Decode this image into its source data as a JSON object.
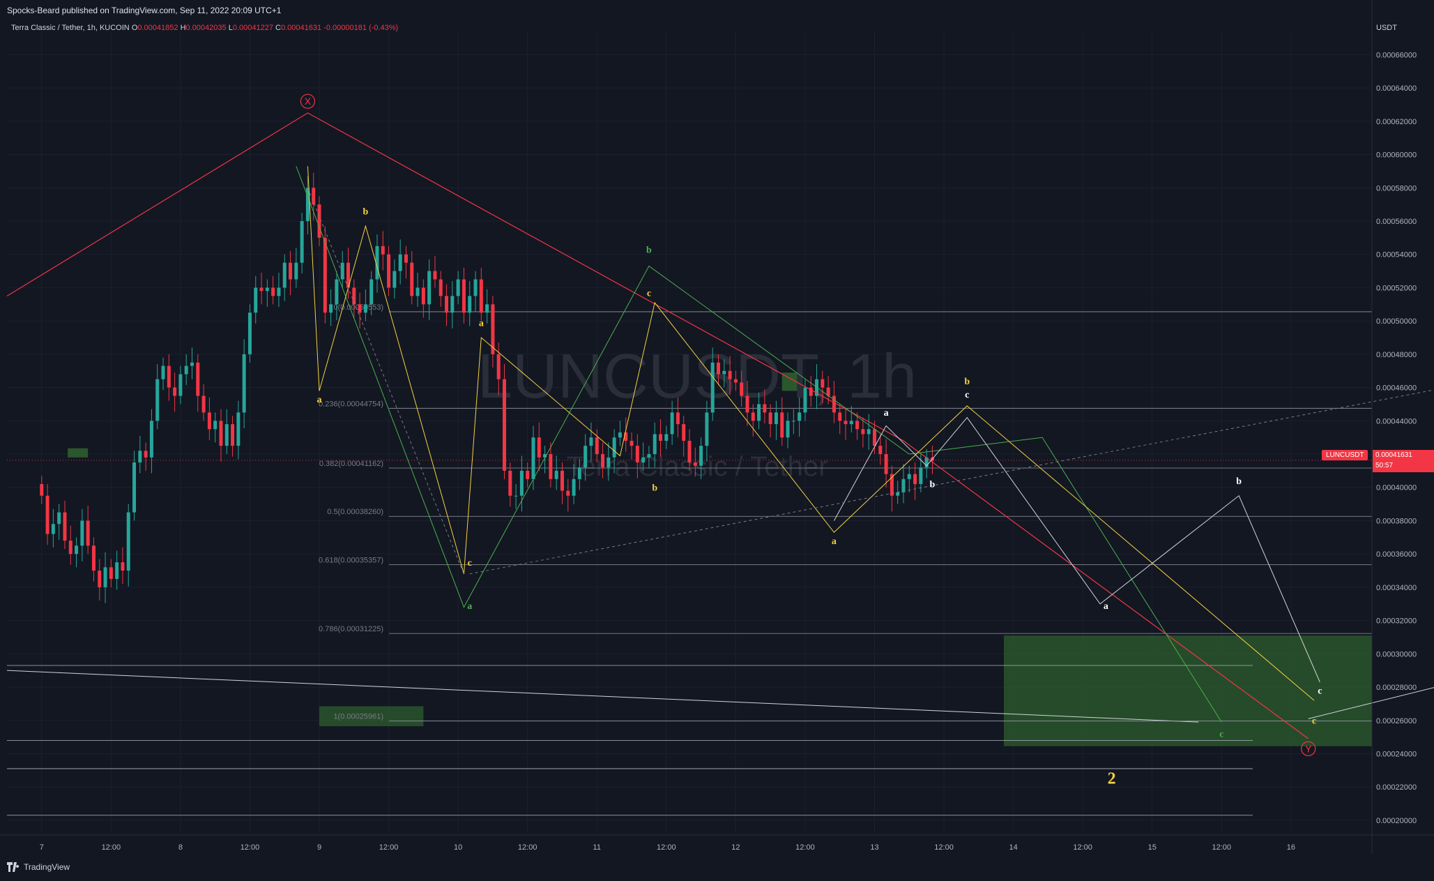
{
  "header": {
    "published": "Spocks-Beard published on TradingView.com, Sep 11, 2022 20:09 UTC+1"
  },
  "legend": {
    "symbol": "Terra Classic / Tether, 1h, KUCOIN",
    "o_label": "O",
    "o_value": "0.00041852",
    "h_label": "H",
    "h_value": "0.00042035",
    "l_label": "L",
    "l_value": "0.00041227",
    "c_label": "C",
    "c_value": "0.00041631",
    "change": "-0.00000181 (-0.43%)"
  },
  "axis_unit": "USDT",
  "watermark": {
    "ticker": "LUNCUSDT, 1h",
    "name": "Terra Classic / Tether"
  },
  "current_price": {
    "ticker": "LUNCUSDT",
    "price": "0.00041631",
    "countdown": "50:57"
  },
  "footer": {
    "brand": "TradingView"
  },
  "colors": {
    "background": "#131722",
    "up": "#26a69a",
    "down": "#f23645",
    "yellow": "#f5d142",
    "green_wave": "#4caf50",
    "zone": "#2e5e2e"
  },
  "chart_data": {
    "type": "candlestick",
    "title": "Terra Classic / Tether, 1h, KUCOIN",
    "ylabel": "USDT",
    "ylim": [
      0.000192,
      0.000674
    ],
    "y_ticks": [
      "0.00066000",
      "0.00064000",
      "0.00062000",
      "0.00060000",
      "0.00058000",
      "0.00056000",
      "0.00054000",
      "0.00052000",
      "0.00050000",
      "0.00048000",
      "0.00046000",
      "0.00044000",
      "0.00042000",
      "0.00040000",
      "0.00038000",
      "0.00036000",
      "0.00034000",
      "0.00032000",
      "0.00030000",
      "0.00028000",
      "0.00026000",
      "0.00024000",
      "0.00022000",
      "0.00020000"
    ],
    "x_ticks": [
      "7",
      "12:00",
      "8",
      "12:00",
      "9",
      "12:00",
      "10",
      "12:00",
      "11",
      "12:00",
      "12",
      "12:00",
      "13",
      "12:00",
      "14",
      "12:00",
      "15",
      "12:00",
      "16"
    ],
    "x_range_hours": [
      -6,
      230
    ],
    "fib_levels": [
      {
        "label": "0(0.00050553)",
        "value": 0.00050553
      },
      {
        "label": "0.236(0.00044754)",
        "value": 0.00044754
      },
      {
        "label": "0.382(0.00041162)",
        "value": 0.00041162
      },
      {
        "label": "0.5(0.00038260)",
        "value": 0.0003826
      },
      {
        "label": "0.618(0.00035357)",
        "value": 0.00035357
      },
      {
        "label": "0.786(0.00031225)",
        "value": 0.00031225
      },
      {
        "label": "1(0.00025961)",
        "value": 0.00025961
      }
    ],
    "candles_close": [
      0.000395,
      0.000372,
      0.000378,
      0.000385,
      0.000368,
      0.00036,
      0.000365,
      0.00038,
      0.000365,
      0.00035,
      0.00034,
      0.000352,
      0.000345,
      0.000355,
      0.00035,
      0.000385,
      0.000415,
      0.000422,
      0.000418,
      0.00044,
      0.000465,
      0.000473,
      0.00046,
      0.000455,
      0.000468,
      0.000473,
      0.000475,
      0.000455,
      0.000445,
      0.000435,
      0.00044,
      0.000425,
      0.000438,
      0.000425,
      0.000445,
      0.00048,
      0.000505,
      0.00052,
      0.000518,
      0.00052,
      0.000515,
      0.00052,
      0.000535,
      0.000525,
      0.000535,
      0.00056,
      0.00058,
      0.00057,
      0.00055,
      0.000505,
      0.00051,
      0.000525,
      0.000535,
      0.00052,
      0.00051,
      0.000505,
      0.00051,
      0.000525,
      0.000545,
      0.00054,
      0.00052,
      0.00053,
      0.00054,
      0.000535,
      0.000515,
      0.00052,
      0.00051,
      0.00053,
      0.000525,
      0.000515,
      0.000505,
      0.000515,
      0.000525,
      0.000505,
      0.000515,
      0.000525,
      0.000505,
      0.00051,
      0.00048,
      0.000465,
      0.00041,
      0.000395,
      0.000395,
      0.00041,
      0.000405,
      0.00043,
      0.000418,
      0.00042,
      0.000405,
      0.00041,
      0.000398,
      0.000395,
      0.000405,
      0.000412,
      0.000425,
      0.00043,
      0.00042,
      0.000412,
      0.000418,
      0.00043,
      0.000433,
      0.000428,
      0.000425,
      0.000415,
      0.000418,
      0.00042,
      0.000432,
      0.000428,
      0.000432,
      0.000445,
      0.000438,
      0.000428,
      0.000415,
      0.000413,
      0.000425,
      0.000445,
      0.000475,
      0.000468,
      0.00047,
      0.000465,
      0.000463,
      0.000455,
      0.000445,
      0.00044,
      0.00045,
      0.000445,
      0.000438,
      0.000445,
      0.00043,
      0.00044,
      0.00044,
      0.000445,
      0.00046,
      0.000455,
      0.000465,
      0.00046,
      0.000455,
      0.000445,
      0.00044,
      0.000438,
      0.00044,
      0.000435,
      0.000432,
      0.000435,
      0.000425,
      0.00042,
      0.000408,
      0.000395,
      0.000397,
      0.000405,
      0.000408,
      0.000402,
      0.000412,
      0.000418,
      0.000416
    ]
  }
}
